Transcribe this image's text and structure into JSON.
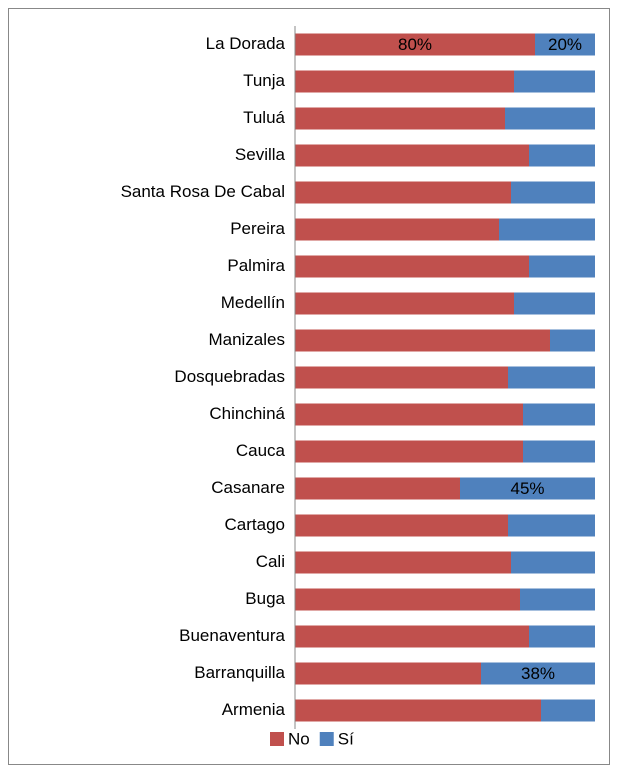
{
  "chart_data": {
    "type": "stacked-bar-horizontal",
    "categories": [
      "La Dorada",
      "Tunja",
      "Tuluá",
      "Sevilla",
      "Santa Rosa De Cabal",
      "Pereira",
      "Palmira",
      "Medellín",
      "Manizales",
      "Dosquebradas",
      "Chinchiná",
      "Cauca",
      "Casanare",
      "Cartago",
      "Cali",
      "Buga",
      "Buenaventura",
      "Barranquilla",
      "Armenia"
    ],
    "series": [
      {
        "name": "No",
        "color": "#c0504d",
        "values": [
          80,
          73,
          70,
          78,
          72,
          68,
          78,
          73,
          85,
          71,
          76,
          76,
          55,
          71,
          72,
          75,
          78,
          62,
          82
        ],
        "value_labels": [
          "80%",
          null,
          null,
          null,
          null,
          null,
          null,
          null,
          null,
          null,
          null,
          null,
          null,
          null,
          null,
          null,
          null,
          null,
          null
        ]
      },
      {
        "name": "Sí",
        "color": "#4f81bd",
        "values": [
          20,
          27,
          30,
          22,
          28,
          32,
          22,
          27,
          15,
          29,
          24,
          24,
          45,
          29,
          28,
          25,
          22,
          38,
          18
        ],
        "value_labels": [
          "20%",
          null,
          null,
          null,
          null,
          null,
          null,
          null,
          null,
          null,
          null,
          null,
          "45%",
          null,
          null,
          null,
          null,
          "38%",
          null
        ]
      }
    ],
    "xlim": [
      0,
      100
    ],
    "legend": "bottom"
  }
}
